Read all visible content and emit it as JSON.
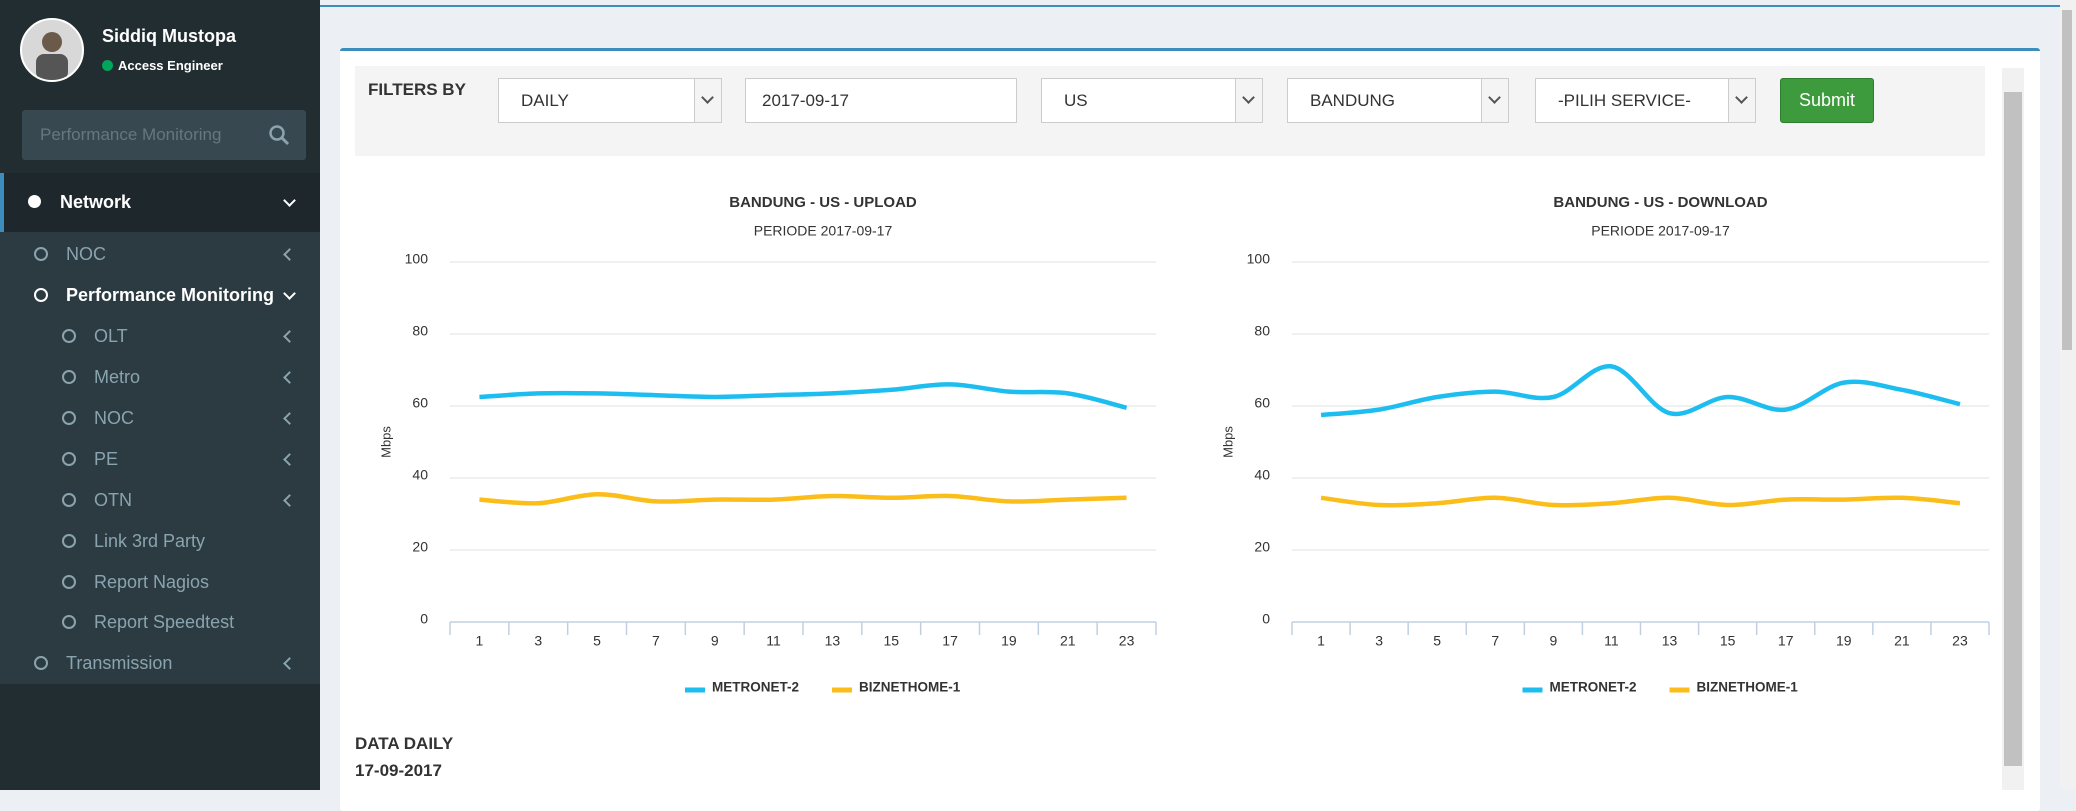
{
  "sidebar": {
    "user_name": "Siddiq Mustopa",
    "user_role": "Access Engineer",
    "search_placeholder": "Performance Monitoring",
    "menu": [
      "Network",
      "NOC",
      "Performance Monitoring",
      "OLT",
      "Metro",
      "NOC",
      "PE",
      "OTN",
      "Link 3rd Party",
      "Report Nagios",
      "Report Speedtest",
      "Transmission"
    ]
  },
  "filters": {
    "label": "FILTERS BY",
    "period": "DAILY",
    "date": "2017-09-17",
    "direction": "US",
    "region": "BANDUNG",
    "service": "-PILIH SERVICE-",
    "submit": "Submit"
  },
  "chart_data": [
    {
      "type": "line",
      "title": "BANDUNG - US - UPLOAD",
      "subtitle": "PERIODE 2017-09-17",
      "y_label": "Mbps",
      "categories": [
        "1",
        "3",
        "5",
        "7",
        "9",
        "11",
        "13",
        "15",
        "17",
        "19",
        "21",
        "23"
      ],
      "ylim": [
        0,
        100
      ],
      "yticks": [
        0,
        20,
        40,
        60,
        80,
        100
      ],
      "grid": true,
      "smooth": true,
      "legend": "bottom",
      "series": [
        {
          "name": "METRONET-2",
          "color": "#1ebdf0",
          "values": [
            62.5,
            63.5,
            63.5,
            63,
            62.5,
            63,
            63.5,
            64.5,
            66,
            64,
            63.5,
            59.5
          ]
        },
        {
          "name": "BIZNETHOME-1",
          "color": "#fbbd19",
          "values": [
            34,
            33,
            35.5,
            33.5,
            34,
            34,
            35,
            34.5,
            35,
            33.5,
            34,
            34.5
          ]
        }
      ]
    },
    {
      "type": "line",
      "title": "BANDUNG - US - DOWNLOAD",
      "subtitle": "PERIODE 2017-09-17",
      "y_label": "Mbps",
      "categories": [
        "1",
        "3",
        "5",
        "7",
        "9",
        "11",
        "13",
        "15",
        "17",
        "19",
        "21",
        "23"
      ],
      "ylim": [
        0,
        100
      ],
      "yticks": [
        0,
        20,
        40,
        60,
        80,
        100
      ],
      "grid": true,
      "smooth": true,
      "legend": "bottom",
      "series": [
        {
          "name": "METRONET-2",
          "color": "#1ebdf0",
          "values": [
            57.5,
            59,
            62.5,
            64,
            62.5,
            71,
            58,
            62.5,
            59,
            66.5,
            64.5,
            60.5
          ]
        },
        {
          "name": "BIZNETHOME-1",
          "color": "#fbbd19",
          "values": [
            34.5,
            32.5,
            33,
            34.5,
            32.5,
            33,
            34.5,
            32.5,
            34,
            34,
            34.5,
            33
          ]
        }
      ]
    }
  ],
  "data_section": {
    "title": "DATA DAILY",
    "date": "17-09-2017"
  }
}
